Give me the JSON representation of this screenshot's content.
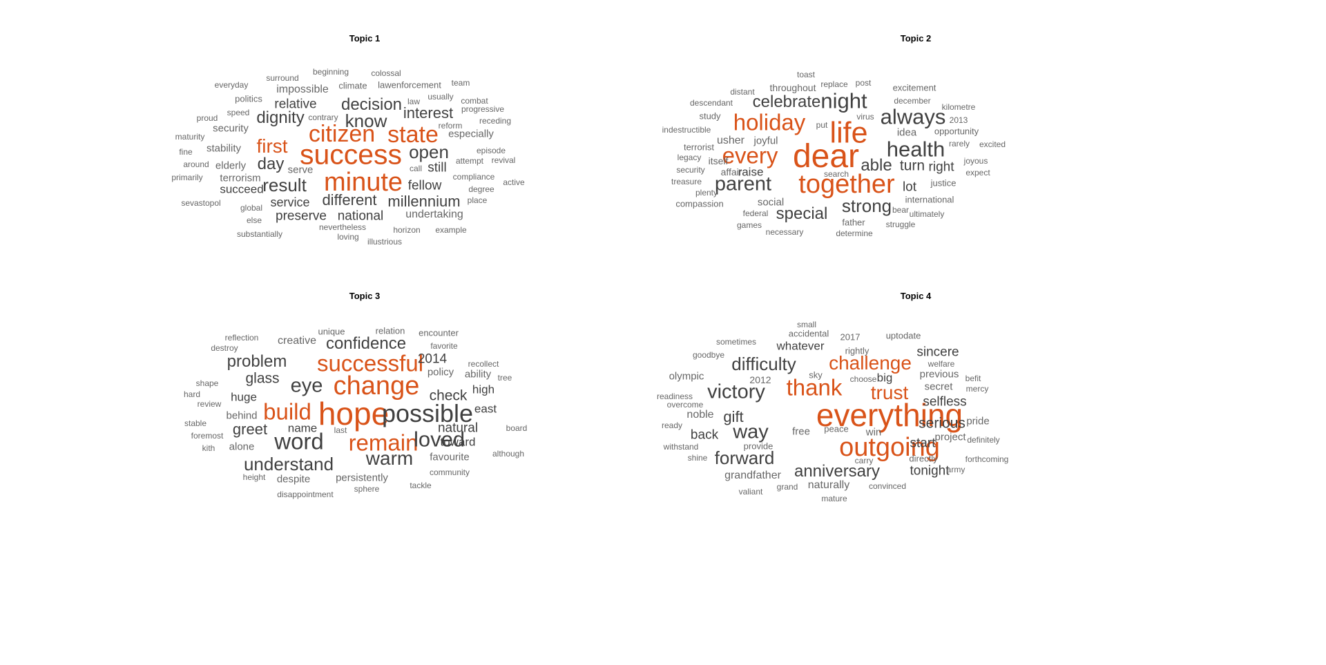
{
  "colors": {
    "highlight": "#D95319",
    "major": "#404040",
    "minor": "#666666",
    "tiny": "#9a9a9a"
  },
  "chart_data": [
    {
      "type": "wordcloud",
      "title": "Topic 1",
      "words": [
        {
          "text": "success",
          "weight": 48,
          "hl": true
        },
        {
          "text": "citizen",
          "weight": 40,
          "hl": true
        },
        {
          "text": "state",
          "weight": 40,
          "hl": true
        },
        {
          "text": "minute",
          "weight": 44,
          "hl": true
        },
        {
          "text": "first",
          "weight": 32,
          "hl": true
        },
        {
          "text": "know",
          "weight": 30
        },
        {
          "text": "decision",
          "weight": 28
        },
        {
          "text": "dignity",
          "weight": 28
        },
        {
          "text": "open",
          "weight": 30
        },
        {
          "text": "interest",
          "weight": 26
        },
        {
          "text": "result",
          "weight": 30
        },
        {
          "text": "day",
          "weight": 28
        },
        {
          "text": "different",
          "weight": 26
        },
        {
          "text": "millennium",
          "weight": 26
        },
        {
          "text": "fellow",
          "weight": 22
        },
        {
          "text": "still",
          "weight": 22
        },
        {
          "text": "national",
          "weight": 22
        },
        {
          "text": "preserve",
          "weight": 22
        },
        {
          "text": "service",
          "weight": 21
        },
        {
          "text": "relative",
          "weight": 22
        },
        {
          "text": "impossible",
          "weight": 19
        },
        {
          "text": "succeed",
          "weight": 20
        },
        {
          "text": "undertaking",
          "weight": 19
        },
        {
          "text": "terrorism",
          "weight": 18
        },
        {
          "text": "especially",
          "weight": 18
        },
        {
          "text": "security",
          "weight": 17
        },
        {
          "text": "stability",
          "weight": 17
        },
        {
          "text": "elderly",
          "weight": 17
        },
        {
          "text": "serve",
          "weight": 17
        },
        {
          "text": "politics",
          "weight": 15
        },
        {
          "text": "climate",
          "weight": 15
        },
        {
          "text": "lawenforcement",
          "weight": 15
        },
        {
          "text": "beginning",
          "weight": 14
        },
        {
          "text": "colossal",
          "weight": 14
        },
        {
          "text": "surround",
          "weight": 14
        },
        {
          "text": "everyday",
          "weight": 14
        },
        {
          "text": "team",
          "weight": 14
        },
        {
          "text": "speed",
          "weight": 14
        },
        {
          "text": "proud",
          "weight": 14
        },
        {
          "text": "law",
          "weight": 14
        },
        {
          "text": "usually",
          "weight": 14
        },
        {
          "text": "combat",
          "weight": 14
        },
        {
          "text": "progressive",
          "weight": 14
        },
        {
          "text": "receding",
          "weight": 14
        },
        {
          "text": "contrary",
          "weight": 14
        },
        {
          "text": "reform",
          "weight": 14
        },
        {
          "text": "maturity",
          "weight": 14
        },
        {
          "text": "fine",
          "weight": 14
        },
        {
          "text": "episode",
          "weight": 14
        },
        {
          "text": "attempt",
          "weight": 14
        },
        {
          "text": "revival",
          "weight": 14
        },
        {
          "text": "around",
          "weight": 14
        },
        {
          "text": "primarily",
          "weight": 14
        },
        {
          "text": "compliance",
          "weight": 14
        },
        {
          "text": "active",
          "weight": 14
        },
        {
          "text": "call",
          "weight": 14
        },
        {
          "text": "degree",
          "weight": 14
        },
        {
          "text": "sevastopol",
          "weight": 14
        },
        {
          "text": "global",
          "weight": 14
        },
        {
          "text": "place",
          "weight": 14
        },
        {
          "text": "else",
          "weight": 14
        },
        {
          "text": "nevertheless",
          "weight": 14
        },
        {
          "text": "horizon",
          "weight": 14
        },
        {
          "text": "example",
          "weight": 14
        },
        {
          "text": "substantially",
          "weight": 14
        },
        {
          "text": "loving",
          "weight": 14
        },
        {
          "text": "illustrious",
          "weight": 14
        }
      ]
    },
    {
      "type": "wordcloud",
      "title": "Topic 2",
      "words": [
        {
          "text": "dear",
          "weight": 56,
          "hl": true
        },
        {
          "text": "life",
          "weight": 50,
          "hl": true
        },
        {
          "text": "together",
          "weight": 44,
          "hl": true
        },
        {
          "text": "holiday",
          "weight": 38,
          "hl": true
        },
        {
          "text": "every",
          "weight": 38,
          "hl": true
        },
        {
          "text": "night",
          "weight": 36
        },
        {
          "text": "always",
          "weight": 36
        },
        {
          "text": "health",
          "weight": 36
        },
        {
          "text": "parent",
          "weight": 34
        },
        {
          "text": "strong",
          "weight": 30
        },
        {
          "text": "special",
          "weight": 28
        },
        {
          "text": "celebrate",
          "weight": 28
        },
        {
          "text": "able",
          "weight": 28
        },
        {
          "text": "turn",
          "weight": 24
        },
        {
          "text": "right",
          "weight": 22
        },
        {
          "text": "lot",
          "weight": 22
        },
        {
          "text": "raise",
          "weight": 20
        },
        {
          "text": "usher",
          "weight": 19
        },
        {
          "text": "joyful",
          "weight": 17
        },
        {
          "text": "social",
          "weight": 17
        },
        {
          "text": "idea",
          "weight": 17
        },
        {
          "text": "throughout",
          "weight": 16
        },
        {
          "text": "descendant",
          "weight": 14
        },
        {
          "text": "study",
          "weight": 15
        },
        {
          "text": "distant",
          "weight": 14
        },
        {
          "text": "toast",
          "weight": 14
        },
        {
          "text": "replace",
          "weight": 14
        },
        {
          "text": "post",
          "weight": 14
        },
        {
          "text": "excitement",
          "weight": 15
        },
        {
          "text": "december",
          "weight": 14
        },
        {
          "text": "kilometre",
          "weight": 14
        },
        {
          "text": "opportunity",
          "weight": 15
        },
        {
          "text": "2013",
          "weight": 14
        },
        {
          "text": "rarely",
          "weight": 14
        },
        {
          "text": "excited",
          "weight": 14
        },
        {
          "text": "joyous",
          "weight": 14
        },
        {
          "text": "expect",
          "weight": 14
        },
        {
          "text": "justice",
          "weight": 15
        },
        {
          "text": "international",
          "weight": 15
        },
        {
          "text": "bear",
          "weight": 14
        },
        {
          "text": "ultimately",
          "weight": 14
        },
        {
          "text": "struggle",
          "weight": 14
        },
        {
          "text": "father",
          "weight": 15
        },
        {
          "text": "determine",
          "weight": 14
        },
        {
          "text": "necessary",
          "weight": 14
        },
        {
          "text": "games",
          "weight": 14
        },
        {
          "text": "federal",
          "weight": 14
        },
        {
          "text": "compassion",
          "weight": 15
        },
        {
          "text": "plenty",
          "weight": 14
        },
        {
          "text": "treasure",
          "weight": 14
        },
        {
          "text": "security",
          "weight": 14
        },
        {
          "text": "affair",
          "weight": 16
        },
        {
          "text": "itself",
          "weight": 16
        },
        {
          "text": "legacy",
          "weight": 14
        },
        {
          "text": "terrorist",
          "weight": 15
        },
        {
          "text": "indestructible",
          "weight": 14
        },
        {
          "text": "put",
          "weight": 14
        },
        {
          "text": "virus",
          "weight": 14
        },
        {
          "text": "search",
          "weight": 14
        }
      ]
    },
    {
      "type": "wordcloud",
      "title": "Topic 3",
      "words": [
        {
          "text": "hope",
          "weight": 54,
          "hl": true
        },
        {
          "text": "change",
          "weight": 44,
          "hl": true
        },
        {
          "text": "successful",
          "weight": 38,
          "hl": true
        },
        {
          "text": "build",
          "weight": 38,
          "hl": true
        },
        {
          "text": "remain",
          "weight": 38,
          "hl": true
        },
        {
          "text": "possible",
          "weight": 42
        },
        {
          "text": "word",
          "weight": 38
        },
        {
          "text": "loved",
          "weight": 36
        },
        {
          "text": "eye",
          "weight": 34
        },
        {
          "text": "warm",
          "weight": 32
        },
        {
          "text": "understand",
          "weight": 30
        },
        {
          "text": "confidence",
          "weight": 28
        },
        {
          "text": "problem",
          "weight": 28
        },
        {
          "text": "greet",
          "weight": 26
        },
        {
          "text": "glass",
          "weight": 24
        },
        {
          "text": "check",
          "weight": 24
        },
        {
          "text": "2014",
          "weight": 22
        },
        {
          "text": "natural",
          "weight": 22
        },
        {
          "text": "toward",
          "weight": 20
        },
        {
          "text": "huge",
          "weight": 20
        },
        {
          "text": "name",
          "weight": 20
        },
        {
          "text": "high",
          "weight": 20
        },
        {
          "text": "east",
          "weight": 20
        },
        {
          "text": "creative",
          "weight": 19
        },
        {
          "text": "behind",
          "weight": 18
        },
        {
          "text": "alone",
          "weight": 18
        },
        {
          "text": "favourite",
          "weight": 18
        },
        {
          "text": "despite",
          "weight": 18
        },
        {
          "text": "persistently",
          "weight": 18
        },
        {
          "text": "policy",
          "weight": 17
        },
        {
          "text": "ability",
          "weight": 17
        },
        {
          "text": "unique",
          "weight": 15
        },
        {
          "text": "relation",
          "weight": 15
        },
        {
          "text": "encounter",
          "weight": 15
        },
        {
          "text": "reflection",
          "weight": 14
        },
        {
          "text": "destroy",
          "weight": 14
        },
        {
          "text": "favorite",
          "weight": 14
        },
        {
          "text": "recollect",
          "weight": 14
        },
        {
          "text": "tree",
          "weight": 14
        },
        {
          "text": "shape",
          "weight": 14
        },
        {
          "text": "hard",
          "weight": 14
        },
        {
          "text": "review",
          "weight": 14
        },
        {
          "text": "stable",
          "weight": 14
        },
        {
          "text": "foremost",
          "weight": 14
        },
        {
          "text": "kith",
          "weight": 14
        },
        {
          "text": "board",
          "weight": 14
        },
        {
          "text": "although",
          "weight": 14
        },
        {
          "text": "community",
          "weight": 14
        },
        {
          "text": "height",
          "weight": 14
        },
        {
          "text": "tackle",
          "weight": 14
        },
        {
          "text": "sphere",
          "weight": 14
        },
        {
          "text": "disappointment",
          "weight": 14
        },
        {
          "text": "last",
          "weight": 14
        }
      ]
    },
    {
      "type": "wordcloud",
      "title": "Topic 4",
      "words": [
        {
          "text": "everything",
          "weight": 54,
          "hl": true
        },
        {
          "text": "outgoing",
          "weight": 44,
          "hl": true
        },
        {
          "text": "thank",
          "weight": 38,
          "hl": true
        },
        {
          "text": "challenge",
          "weight": 32,
          "hl": true
        },
        {
          "text": "trust",
          "weight": 32,
          "hl": true
        },
        {
          "text": "victory",
          "weight": 34
        },
        {
          "text": "difficulty",
          "weight": 30
        },
        {
          "text": "way",
          "weight": 34
        },
        {
          "text": "forward",
          "weight": 30
        },
        {
          "text": "anniversary",
          "weight": 28
        },
        {
          "text": "gift",
          "weight": 26
        },
        {
          "text": "serious",
          "weight": 24
        },
        {
          "text": "tonight",
          "weight": 22
        },
        {
          "text": "start",
          "weight": 22
        },
        {
          "text": "selfless",
          "weight": 22
        },
        {
          "text": "sincere",
          "weight": 22
        },
        {
          "text": "back",
          "weight": 22
        },
        {
          "text": "whatever",
          "weight": 20
        },
        {
          "text": "big",
          "weight": 20
        },
        {
          "text": "noble",
          "weight": 19
        },
        {
          "text": "grandfather",
          "weight": 19
        },
        {
          "text": "naturally",
          "weight": 19
        },
        {
          "text": "previous",
          "weight": 18
        },
        {
          "text": "project",
          "weight": 18
        },
        {
          "text": "pride",
          "weight": 18
        },
        {
          "text": "win",
          "weight": 18
        },
        {
          "text": "olympic",
          "weight": 18
        },
        {
          "text": "secret",
          "weight": 17
        },
        {
          "text": "free",
          "weight": 17
        },
        {
          "text": "2012",
          "weight": 16
        },
        {
          "text": "rightly",
          "weight": 15
        },
        {
          "text": "uptodate",
          "weight": 15
        },
        {
          "text": "small",
          "weight": 14
        },
        {
          "text": "accidental",
          "weight": 15
        },
        {
          "text": "2017",
          "weight": 15
        },
        {
          "text": "sometimes",
          "weight": 14
        },
        {
          "text": "goodbye",
          "weight": 14
        },
        {
          "text": "welfare",
          "weight": 14
        },
        {
          "text": "befit",
          "weight": 14
        },
        {
          "text": "mercy",
          "weight": 14
        },
        {
          "text": "sky",
          "weight": 15
        },
        {
          "text": "choose",
          "weight": 14
        },
        {
          "text": "peace",
          "weight": 15
        },
        {
          "text": "readiness",
          "weight": 14
        },
        {
          "text": "overcome",
          "weight": 14
        },
        {
          "text": "ready",
          "weight": 14
        },
        {
          "text": "withstand",
          "weight": 14
        },
        {
          "text": "shine",
          "weight": 14
        },
        {
          "text": "provide",
          "weight": 15
        },
        {
          "text": "carry",
          "weight": 14
        },
        {
          "text": "directly",
          "weight": 15
        },
        {
          "text": "definitely",
          "weight": 14
        },
        {
          "text": "forthcoming",
          "weight": 14
        },
        {
          "text": "army",
          "weight": 14
        },
        {
          "text": "convinced",
          "weight": 14
        },
        {
          "text": "valiant",
          "weight": 14
        },
        {
          "text": "grand",
          "weight": 14
        },
        {
          "text": "mature",
          "weight": 14
        }
      ]
    }
  ]
}
